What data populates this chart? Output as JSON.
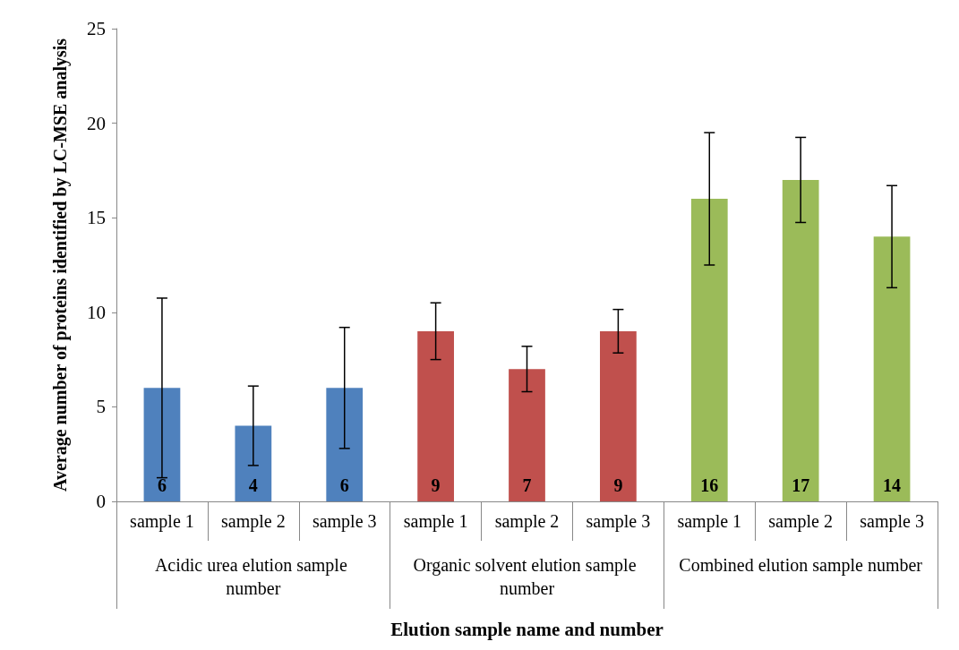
{
  "chart_data": {
    "type": "bar",
    "xlabel": "Elution sample name and number",
    "ylabel": "Average number of proteins identified by LC-MSE analysis",
    "categories": [
      "sample 1",
      "sample 2",
      "sample 3",
      "sample 1",
      "sample 2",
      "sample 3",
      "sample 1",
      "sample 2",
      "sample 3"
    ],
    "values": [
      6,
      4,
      6,
      9,
      7,
      9,
      16,
      17,
      14
    ],
    "colors": [
      "#4f81bd",
      "#4f81bd",
      "#4f81bd",
      "#c0504d",
      "#c0504d",
      "#c0504d",
      "#9bbb59",
      "#9bbb59",
      "#9bbb59"
    ],
    "errors": [
      4.75,
      2.1,
      3.2,
      1.5,
      1.2,
      1.15,
      3.5,
      2.25,
      2.7
    ],
    "annotations": [
      "Acidic urea elution sample number",
      "Organic solvent elution sample number",
      "Combined elution sample number"
    ],
    "ylim": [
      0,
      25
    ],
    "yticks": [
      0,
      5,
      10,
      15,
      20,
      25
    ],
    "data_labels": true,
    "grid": false
  }
}
